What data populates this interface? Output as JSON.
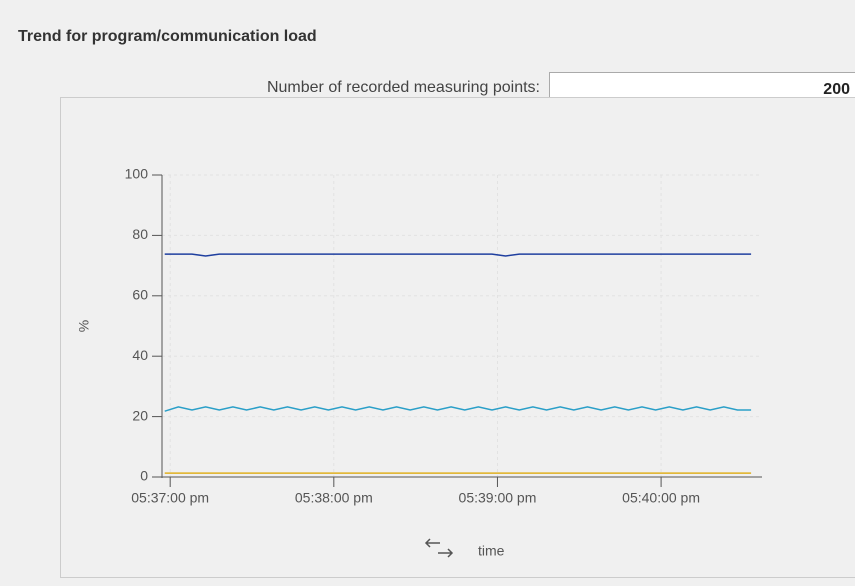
{
  "header": {
    "title": "Trend for program/communication load"
  },
  "setting": {
    "label": "Number of recorded measuring points:",
    "value": "200"
  },
  "chart_data": {
    "type": "line",
    "ylabel": "%",
    "xlabel": "time",
    "x": [
      63418,
      63423,
      63428,
      63433,
      63438,
      63443,
      63448,
      63453,
      63458,
      63463,
      63468,
      63473,
      63478,
      63483,
      63488,
      63493,
      63498,
      63503,
      63508,
      63513,
      63518,
      63523,
      63528,
      63533,
      63538,
      63543,
      63548,
      63553,
      63558,
      63563,
      63568,
      63573,
      63578,
      63583,
      63588,
      63593,
      63598,
      63603,
      63608,
      63613,
      63618,
      63623,
      63628,
      63633
    ],
    "series": [
      {
        "color": "#1f3f9f",
        "values": [
          73.8,
          73.8,
          73.8,
          73.2,
          73.8,
          73.8,
          73.8,
          73.8,
          73.8,
          73.8,
          73.8,
          73.8,
          73.8,
          73.8,
          73.8,
          73.8,
          73.8,
          73.8,
          73.8,
          73.8,
          73.8,
          73.8,
          73.8,
          73.8,
          73.8,
          73.2,
          73.8,
          73.8,
          73.8,
          73.8,
          73.8,
          73.8,
          73.8,
          73.8,
          73.8,
          73.8,
          73.8,
          73.8,
          73.8,
          73.8,
          73.8,
          73.8,
          73.8,
          73.8
        ]
      },
      {
        "color": "#2a9fc8",
        "values": [
          21.8,
          23.2,
          22.2,
          23.2,
          22.2,
          23.2,
          22.2,
          23.2,
          22.2,
          23.2,
          22.2,
          23.2,
          22.2,
          23.2,
          22.2,
          23.2,
          22.2,
          23.2,
          22.2,
          23.2,
          22.2,
          23.2,
          22.2,
          23.2,
          22.2,
          23.2,
          22.2,
          23.2,
          22.2,
          23.2,
          22.2,
          23.2,
          22.2,
          23.2,
          22.2,
          23.2,
          22.2,
          23.2,
          22.2,
          23.2,
          22.2,
          23.2,
          22.2,
          22.2
        ]
      },
      {
        "color": "#e0b020",
        "values": [
          1.3,
          1.3,
          1.3,
          1.3,
          1.3,
          1.3,
          1.3,
          1.3,
          1.3,
          1.3,
          1.3,
          1.3,
          1.3,
          1.3,
          1.3,
          1.3,
          1.3,
          1.3,
          1.3,
          1.3,
          1.3,
          1.3,
          1.3,
          1.3,
          1.3,
          1.3,
          1.3,
          1.3,
          1.3,
          1.3,
          1.3,
          1.3,
          1.3,
          1.3,
          1.3,
          1.3,
          1.3,
          1.3,
          1.3,
          1.3,
          1.3,
          1.3,
          1.3,
          1.3
        ]
      }
    ],
    "xlim": [
      63417,
      63637
    ],
    "ylim": [
      0,
      100
    ],
    "xticks": [
      {
        "value": 63420,
        "label": "05:37:00 pm"
      },
      {
        "value": 63480,
        "label": "05:38:00 pm"
      },
      {
        "value": 63540,
        "label": "05:39:00 pm"
      },
      {
        "value": 63600,
        "label": "05:40:00 pm"
      }
    ],
    "yticks": [
      0,
      20,
      40,
      60,
      80,
      100
    ],
    "grid": true
  }
}
